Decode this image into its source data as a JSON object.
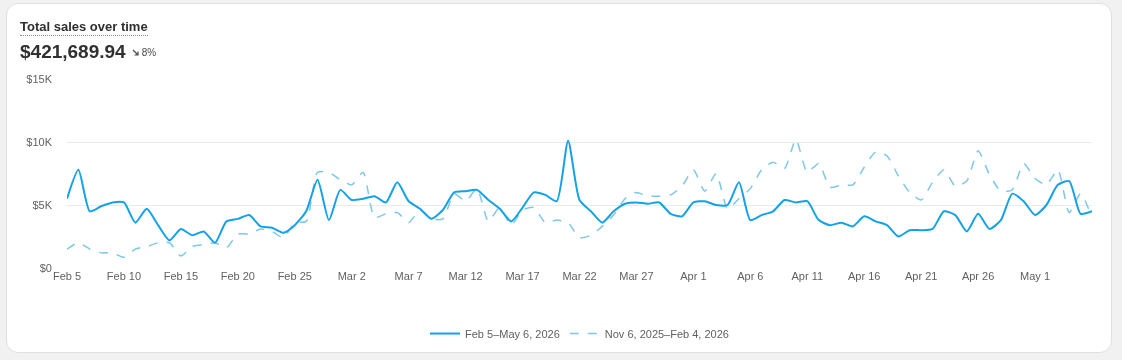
{
  "chart_data": {
    "type": "line",
    "title": "Total sales over time",
    "subtitle": "$421,689.94",
    "annotations": [
      "8%"
    ],
    "x": [
      "2026-02-05",
      "2026-02-06",
      "2026-02-07",
      "2026-02-08",
      "2026-02-09",
      "2026-02-10",
      "2026-02-11",
      "2026-02-12",
      "2026-02-13",
      "2026-02-14",
      "2026-02-15",
      "2026-02-16",
      "2026-02-17",
      "2026-02-18",
      "2026-02-19",
      "2026-02-20",
      "2026-02-21",
      "2026-02-22",
      "2026-02-23",
      "2026-02-24",
      "2026-02-25",
      "2026-02-26",
      "2026-02-27",
      "2026-02-28",
      "2026-03-01",
      "2026-03-02",
      "2026-03-03",
      "2026-03-04",
      "2026-03-05",
      "2026-03-06",
      "2026-03-07",
      "2026-03-08",
      "2026-03-09",
      "2026-03-10",
      "2026-03-11",
      "2026-03-12",
      "2026-03-13",
      "2026-03-14",
      "2026-03-15",
      "2026-03-16",
      "2026-03-17",
      "2026-03-18",
      "2026-03-19",
      "2026-03-20",
      "2026-03-21",
      "2026-03-22",
      "2026-03-23",
      "2026-03-24",
      "2026-03-25",
      "2026-03-26",
      "2026-03-27",
      "2026-03-28",
      "2026-03-29",
      "2026-03-30",
      "2026-03-31",
      "2026-04-01",
      "2026-04-02",
      "2026-04-03",
      "2026-04-04",
      "2026-04-05",
      "2026-04-06",
      "2026-04-07",
      "2026-04-08",
      "2026-04-09",
      "2026-04-10",
      "2026-04-11",
      "2026-04-12",
      "2026-04-13",
      "2026-04-14",
      "2026-04-15",
      "2026-04-16",
      "2026-04-17",
      "2026-04-18",
      "2026-04-19",
      "2026-04-20",
      "2026-04-21",
      "2026-04-22",
      "2026-04-23",
      "2026-04-24",
      "2026-04-25",
      "2026-04-26",
      "2026-04-27",
      "2026-04-28",
      "2026-04-29",
      "2026-04-30",
      "2026-05-01",
      "2026-05-02",
      "2026-05-03",
      "2026-05-04",
      "2026-05-05",
      "2026-05-06"
    ],
    "series": [
      {
        "name": "Feb 5–May 6, 2026",
        "color": "#13a1e8",
        "line_style": "solid",
        "values": [
          5.5,
          7.8,
          4.5,
          4.9,
          5.2,
          5.2,
          3.6,
          4.7,
          3.4,
          2.2,
          3.1,
          2.6,
          2.9,
          2.0,
          3.7,
          3.9,
          4.2,
          3.3,
          3.2,
          2.8,
          3.4,
          4.5,
          7.0,
          3.8,
          6.2,
          5.4,
          5.5,
          5.7,
          5.2,
          6.8,
          5.3,
          4.7,
          3.9,
          4.6,
          6.0,
          6.1,
          6.2,
          5.4,
          4.7,
          3.7,
          4.8,
          6.0,
          5.8,
          5.3,
          10.1,
          5.4,
          4.5,
          3.6,
          4.5,
          5.1,
          5.2,
          5.1,
          5.2,
          4.3,
          4.1,
          5.2,
          5.3,
          5.0,
          5.0,
          6.8,
          3.8,
          4.2,
          4.5,
          5.4,
          5.2,
          5.3,
          3.8,
          3.4,
          3.6,
          3.3,
          4.1,
          3.7,
          3.4,
          2.5,
          3.0,
          3.0,
          3.1,
          4.5,
          4.2,
          2.9,
          4.3,
          3.1,
          3.8,
          5.9,
          5.3,
          4.2,
          5.0,
          6.6,
          6.9,
          4.3,
          4.5
        ]
      },
      {
        "name": "Nov 6, 2025–Feb 4, 2026",
        "color": "#7cc7ea",
        "line_style": "dashed",
        "values": [
          1.5,
          2.0,
          1.5,
          1.2,
          1.2,
          0.85,
          1.5,
          1.7,
          2.0,
          2.0,
          0.95,
          1.7,
          1.85,
          2.0,
          1.6,
          2.7,
          2.7,
          3.1,
          2.9,
          2.4,
          3.6,
          3.7,
          7.6,
          7.6,
          7.0,
          6.6,
          7.6,
          4.0,
          4.3,
          4.4,
          3.6,
          4.6,
          3.9,
          3.9,
          5.9,
          5.3,
          6.3,
          3.7,
          4.8,
          3.4,
          4.6,
          4.8,
          3.6,
          3.8,
          3.6,
          2.4,
          2.6,
          3.3,
          4.2,
          5.5,
          6.0,
          5.7,
          5.7,
          5.8,
          6.5,
          7.8,
          6.1,
          7.5,
          4.7,
          5.5,
          6.3,
          7.8,
          8.4,
          7.9,
          10.2,
          7.6,
          8.3,
          6.4,
          6.6,
          6.6,
          8.0,
          9.2,
          8.9,
          7.3,
          6.0,
          5.4,
          6.8,
          7.8,
          6.5,
          6.9,
          9.3,
          7.4,
          6.1,
          6.2,
          8.3,
          7.1,
          6.6,
          7.8,
          4.4,
          5.9,
          4.0
        ]
      }
    ],
    "xlim": [
      "2026-02-05",
      "2026-05-06"
    ],
    "xticks": [
      {
        "value": "2026-02-05",
        "label": "Feb 5"
      },
      {
        "value": "2026-02-10",
        "label": "Feb 10"
      },
      {
        "value": "2026-02-15",
        "label": "Feb 15"
      },
      {
        "value": "2026-02-20",
        "label": "Feb 20"
      },
      {
        "value": "2026-02-25",
        "label": "Feb 25"
      },
      {
        "value": "2026-03-02",
        "label": "Mar 2"
      },
      {
        "value": "2026-03-07",
        "label": "Mar 7"
      },
      {
        "value": "2026-03-12",
        "label": "Mar 12"
      },
      {
        "value": "2026-03-17",
        "label": "Mar 17"
      },
      {
        "value": "2026-03-22",
        "label": "Mar 22"
      },
      {
        "value": "2026-03-27",
        "label": "Mar 27"
      },
      {
        "value": "2026-04-01",
        "label": "Apr 1"
      },
      {
        "value": "2026-04-06",
        "label": "Apr 6"
      },
      {
        "value": "2026-04-11",
        "label": "Apr 11"
      },
      {
        "value": "2026-04-16",
        "label": "Apr 16"
      },
      {
        "value": "2026-04-21",
        "label": "Apr 21"
      },
      {
        "value": "2026-04-26",
        "label": "Apr 26"
      },
      {
        "value": "2026-05-01",
        "label": "May 1"
      }
    ],
    "ylim": [
      0,
      15
    ],
    "yticks": [
      {
        "value": 0,
        "label": "$0"
      },
      {
        "value": 5,
        "label": "$5K"
      },
      {
        "value": 10,
        "label": "$10K"
      },
      {
        "value": 15,
        "label": "$15K"
      }
    ],
    "grid": "y",
    "legend": "bottom"
  }
}
